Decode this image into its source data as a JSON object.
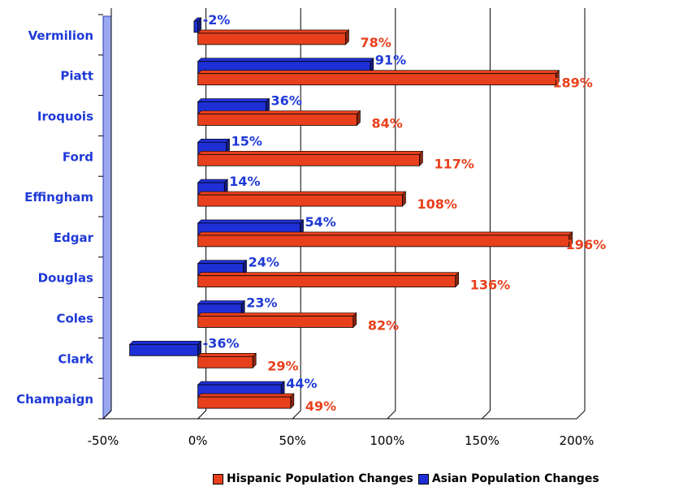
{
  "chart_data": {
    "type": "bar",
    "orientation": "horizontal",
    "categories": [
      "Vermilion",
      "Piatt",
      "Iroquois",
      "Ford",
      "Effingham",
      "Edgar",
      "Douglas",
      "Coles",
      "Clark",
      "Champaign"
    ],
    "series": [
      {
        "name": "Hispanic Population Changes",
        "color": "#e8401c",
        "values": [
          78,
          189,
          84,
          117,
          108,
          196,
          136,
          82,
          29,
          49
        ],
        "labels": [
          "78%",
          "189%",
          "84%",
          "117%",
          "108%",
          "196%",
          "136%",
          "82%",
          "29%",
          "49%"
        ]
      },
      {
        "name": "Asian Population Changes",
        "color": "#1f2fd6",
        "values": [
          -2,
          91,
          36,
          15,
          14,
          54,
          24,
          23,
          -36,
          44
        ],
        "labels": [
          "-2%",
          "91%",
          "36%",
          "15%",
          "14%",
          "54%",
          "24%",
          "23%",
          "-36%",
          "44%"
        ]
      }
    ],
    "xlim": [
      -50,
      200
    ],
    "xticks": [
      -50,
      0,
      50,
      100,
      150,
      200
    ],
    "xtick_labels": [
      "-50%",
      "0%",
      "50%",
      "100%",
      "150%",
      "200%"
    ],
    "grid": "vertical",
    "legend": "bottom"
  },
  "legend_items": [
    "Hispanic Population Changes",
    "Asian Population Changes"
  ]
}
